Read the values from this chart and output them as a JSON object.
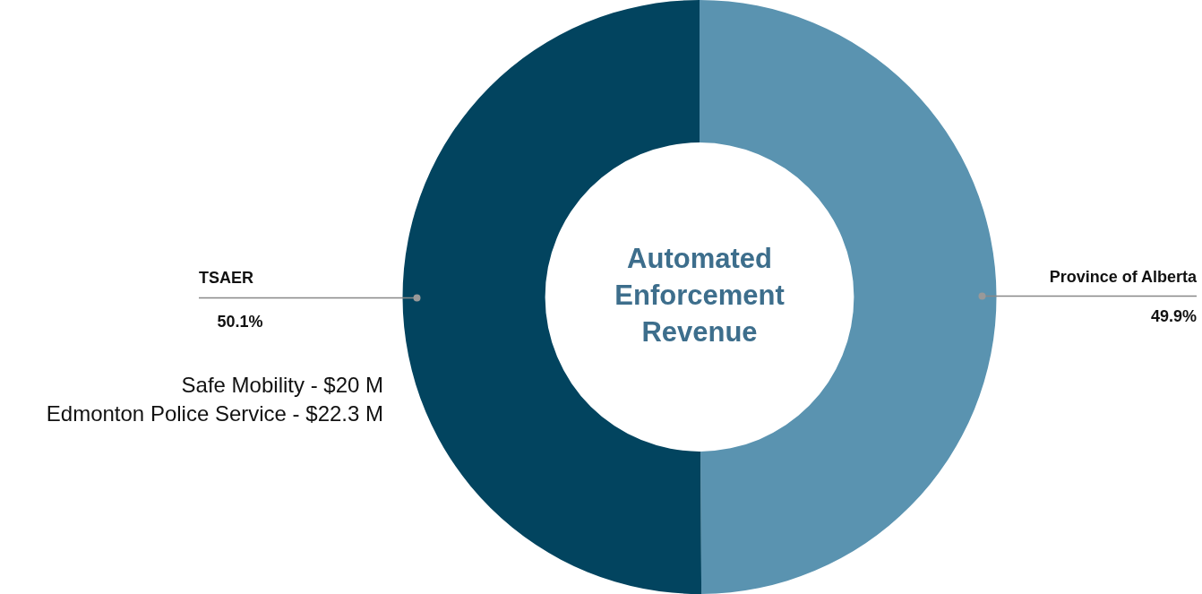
{
  "chart_data": {
    "type": "donut",
    "title": "Automated Enforcement Revenue",
    "categories": [
      "Province of Alberta",
      "TSAER"
    ],
    "values": [
      49.9,
      50.1
    ],
    "value_labels": [
      "49.9%",
      "50.1%"
    ],
    "colors": [
      "#5a93b0",
      "#02445f"
    ],
    "legend": false,
    "annotations": [
      "Safe Mobility - $20 M",
      "Edmonton Police Service - $22.3 M"
    ]
  }
}
